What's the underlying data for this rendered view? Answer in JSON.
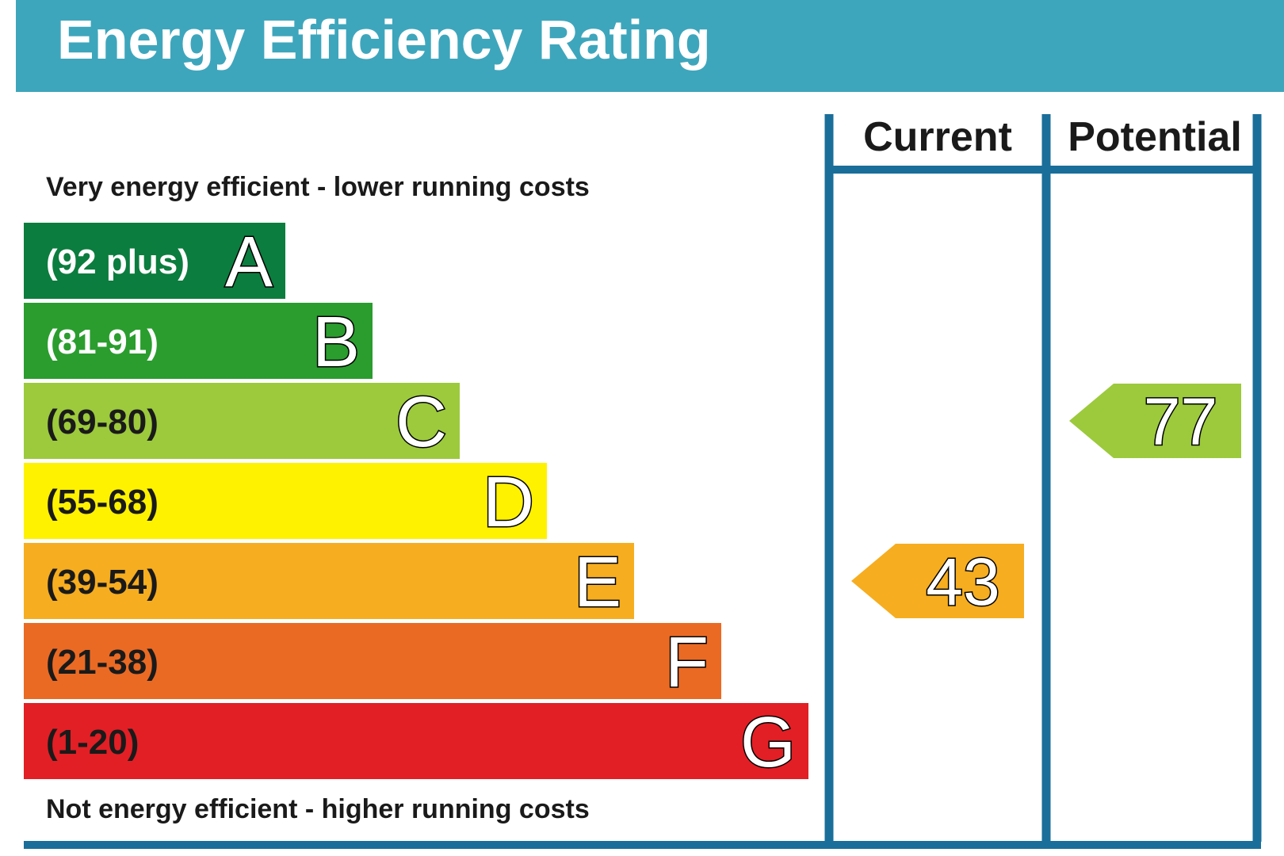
{
  "title": "Energy Efficiency Rating",
  "top_note": "Very energy efficient - lower running costs",
  "bottom_note": "Not energy efficient - higher running costs",
  "columns": {
    "current": "Current",
    "potential": "Potential"
  },
  "colors": {
    "header_bg": "#3ea6bc",
    "frame": "#1a6e9a"
  },
  "chart_data": {
    "type": "bar",
    "scale": {
      "min": 1,
      "max": 100
    },
    "bands": [
      {
        "letter": "A",
        "range": "(92 plus)",
        "min": 92,
        "max": 100,
        "color": "#0b7d3e",
        "text_color": "#ffffff"
      },
      {
        "letter": "B",
        "range": "(81-91)",
        "min": 81,
        "max": 91,
        "color": "#2a9d2e",
        "text_color": "#ffffff"
      },
      {
        "letter": "C",
        "range": "(69-80)",
        "min": 69,
        "max": 80,
        "color": "#9cca3c",
        "text_color": "#1a1a1a"
      },
      {
        "letter": "D",
        "range": "(55-68)",
        "min": 55,
        "max": 68,
        "color": "#fff200",
        "text_color": "#1a1a1a"
      },
      {
        "letter": "E",
        "range": "(39-54)",
        "min": 39,
        "max": 54,
        "color": "#f6ad1f",
        "text_color": "#1a1a1a"
      },
      {
        "letter": "F",
        "range": "(21-38)",
        "min": 21,
        "max": 38,
        "color": "#ea6a24",
        "text_color": "#1a1a1a"
      },
      {
        "letter": "G",
        "range": "(1-20)",
        "min": 1,
        "max": 20,
        "color": "#e21f25",
        "text_color": "#1a1a1a"
      }
    ],
    "current": {
      "value": 43,
      "band": "E",
      "color": "#f6ad1f"
    },
    "potential": {
      "value": 77,
      "band": "C",
      "color": "#9cca3c"
    }
  }
}
